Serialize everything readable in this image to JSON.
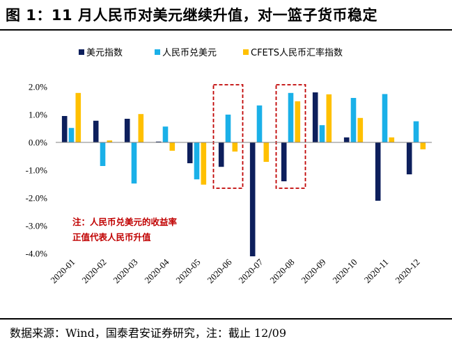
{
  "header": {
    "title": "图 1：11 月人民币对美元继续升值，对一篮子货币稳定"
  },
  "footer": {
    "source": "数据来源：Wind，国泰君安证券研究，注：截止 12/09"
  },
  "chart_data": {
    "type": "bar",
    "title": "",
    "xlabel": "",
    "ylabel": "",
    "categories": [
      "2020-01",
      "2020-02",
      "2020-03",
      "2020-04",
      "2020-05",
      "2020-06",
      "2020-07",
      "2020-08",
      "2020-09",
      "2020-10",
      "2020-11",
      "2020-12"
    ],
    "series": [
      {
        "name": "美元指数",
        "color": "#0d1f5c",
        "values": [
          0.95,
          0.78,
          0.85,
          0.03,
          -0.75,
          -0.88,
          -4.1,
          -1.4,
          1.8,
          0.18,
          -2.1,
          -1.15
        ]
      },
      {
        "name": "人民币兑美元",
        "color": "#1ab0e8",
        "values": [
          0.52,
          -0.85,
          -1.48,
          0.57,
          -1.33,
          1.0,
          1.33,
          1.78,
          0.62,
          1.6,
          1.74,
          0.76
        ]
      },
      {
        "name": "CFETS人民币汇率指数",
        "color": "#ffc000",
        "values": [
          1.78,
          0.07,
          1.02,
          -0.3,
          -1.52,
          -0.33,
          -0.7,
          1.48,
          1.73,
          0.88,
          0.18,
          -0.25
        ]
      }
    ],
    "ylim": [
      -4.0,
      2.0
    ],
    "yticks": [
      2.0,
      1.0,
      0.0,
      -1.0,
      -2.0,
      -3.0,
      -4.0
    ],
    "ytick_labels": [
      "2.0%",
      "1.0%",
      "0.0%",
      "-1.0%",
      "-2.0%",
      "-3.0%",
      "-4.0%"
    ],
    "grid": false,
    "legend_position": "top",
    "highlight_categories": [
      "2020-06",
      "2020-08"
    ],
    "highlight_color": "#c00000",
    "annotation": {
      "lines": [
        "注：人民币兑美元的收益率",
        "正值代表人民币升值"
      ],
      "color": "#c00000"
    }
  }
}
